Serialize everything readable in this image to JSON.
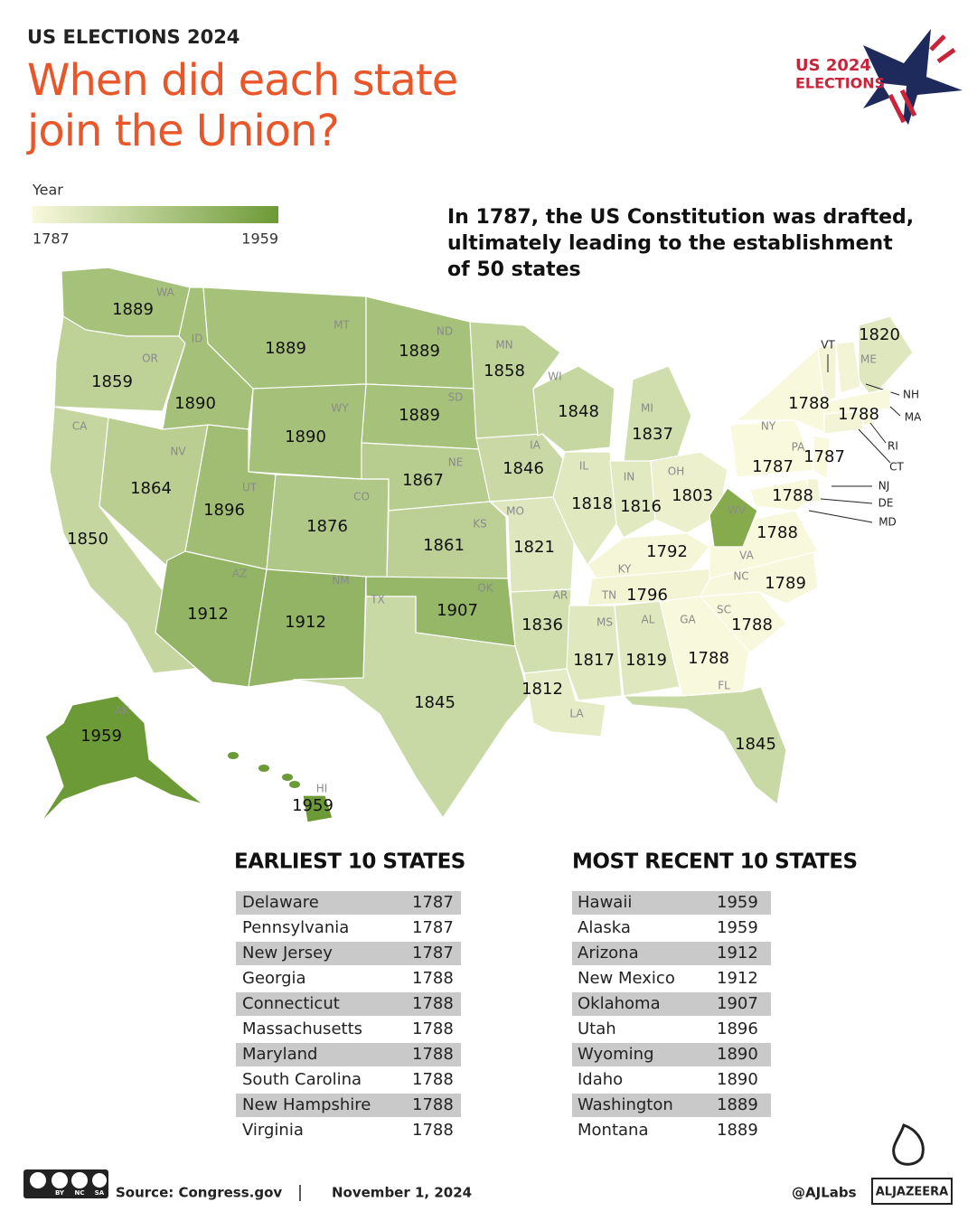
{
  "header": {
    "kicker": "US ELECTIONS 2024",
    "title": [
      "When did each state",
      "join the Union?"
    ]
  },
  "logo": {
    "line1": "US 2024",
    "line2": "ELECTIONS"
  },
  "legend": {
    "title": "Year",
    "min": 1787,
    "max": 1959,
    "colors": [
      "#f9f9dd",
      "#6c9a36"
    ]
  },
  "note": [
    "In 1787, the US Constitution was drafted,",
    "ultimately leading to the establishment",
    "of 50 states"
  ],
  "map": {
    "states": [
      {
        "abbr": "WA",
        "year": 1889
      },
      {
        "abbr": "OR",
        "year": 1859
      },
      {
        "abbr": "CA",
        "year": 1850
      },
      {
        "abbr": "NV",
        "year": 1864
      },
      {
        "abbr": "ID",
        "year": 1890
      },
      {
        "abbr": "MT",
        "year": 1889
      },
      {
        "abbr": "WY",
        "year": 1890
      },
      {
        "abbr": "UT",
        "year": 1896
      },
      {
        "abbr": "CO",
        "year": 1876
      },
      {
        "abbr": "AZ",
        "year": 1912
      },
      {
        "abbr": "NM",
        "year": 1912
      },
      {
        "abbr": "ND",
        "year": 1889
      },
      {
        "abbr": "SD",
        "year": 1889
      },
      {
        "abbr": "NE",
        "year": 1867
      },
      {
        "abbr": "KS",
        "year": 1861
      },
      {
        "abbr": "OK",
        "year": 1907
      },
      {
        "abbr": "TX",
        "year": 1845
      },
      {
        "abbr": "MN",
        "year": 1858
      },
      {
        "abbr": "IA",
        "year": 1846
      },
      {
        "abbr": "MO",
        "year": 1821
      },
      {
        "abbr": "AR",
        "year": 1836
      },
      {
        "abbr": "LA",
        "year": 1812
      },
      {
        "abbr": "WI",
        "year": 1848
      },
      {
        "abbr": "IL",
        "year": 1818
      },
      {
        "abbr": "IN",
        "year": 1816
      },
      {
        "abbr": "MI",
        "year": 1837
      },
      {
        "abbr": "OH",
        "year": 1803
      },
      {
        "abbr": "KY",
        "year": 1792
      },
      {
        "abbr": "TN",
        "year": 1796
      },
      {
        "abbr": "MS",
        "year": 1817
      },
      {
        "abbr": "AL",
        "year": 1819
      },
      {
        "abbr": "GA",
        "year": 1788
      },
      {
        "abbr": "FL",
        "year": 1845
      },
      {
        "abbr": "SC",
        "year": 1788
      },
      {
        "abbr": "NC",
        "year": 1789
      },
      {
        "abbr": "VA",
        "year": 1788
      },
      {
        "abbr": "WV"
      },
      {
        "abbr": "PA",
        "year": 1787
      },
      {
        "abbr": "NY",
        "year": 1788
      },
      {
        "abbr": "ME",
        "year": 1820
      },
      {
        "abbr": "VT"
      },
      {
        "abbr": "NH"
      },
      {
        "abbr": "MA",
        "year": 1788
      },
      {
        "abbr": "RI"
      },
      {
        "abbr": "CT"
      },
      {
        "abbr": "NJ",
        "year": 1787
      },
      {
        "abbr": "DE"
      },
      {
        "abbr": "MD",
        "year": 1788
      },
      {
        "abbr": "AK",
        "year": 1959
      },
      {
        "abbr": "HI",
        "year": 1959
      }
    ]
  },
  "tables": [
    {
      "title": "EARLIEST 10 STATES",
      "rows": [
        [
          "Delaware",
          1787
        ],
        [
          "Pennsylvania",
          1787
        ],
        [
          "New Jersey",
          1787
        ],
        [
          "Georgia",
          1788
        ],
        [
          "Connecticut",
          1788
        ],
        [
          "Massachusetts",
          1788
        ],
        [
          "Maryland",
          1788
        ],
        [
          "South Carolina",
          1788
        ],
        [
          "New Hampshire",
          1788
        ],
        [
          "Virginia",
          1788
        ]
      ]
    },
    {
      "title": "MOST RECENT 10 STATES",
      "rows": [
        [
          "Hawaii",
          1959
        ],
        [
          "Alaska",
          1959
        ],
        [
          "Arizona",
          1912
        ],
        [
          "New Mexico",
          1912
        ],
        [
          "Oklahoma",
          1907
        ],
        [
          "Utah",
          1896
        ],
        [
          "Wyoming",
          1890
        ],
        [
          "Idaho",
          1890
        ],
        [
          "Washington",
          1889
        ],
        [
          "Montana",
          1889
        ]
      ]
    }
  ],
  "footer": {
    "license": [
      "BY",
      "NC",
      "SA"
    ],
    "source": "Source:  Congress.gov",
    "date": "November 1, 2024",
    "handle": "@AJLabs",
    "brand": "ALJAZEERA"
  }
}
